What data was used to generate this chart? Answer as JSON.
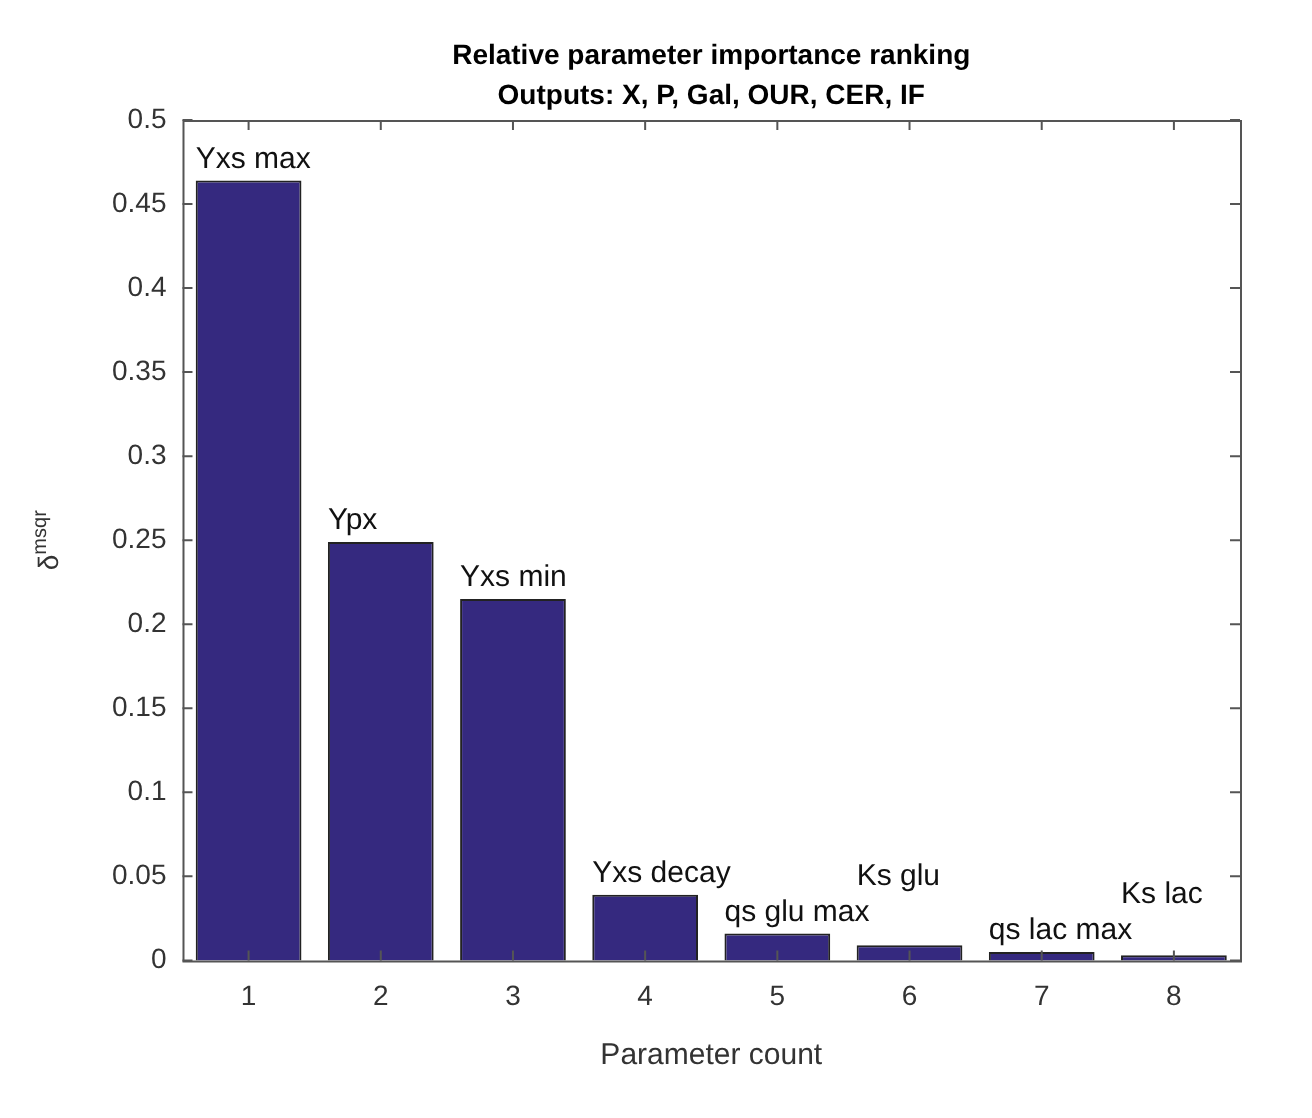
{
  "chart_data": {
    "type": "bar",
    "title": "Relative parameter importance ranking",
    "subtitle": "Outputs: X, P, Gal, OUR, CER, IF",
    "xlabel": "Parameter count",
    "ylabel": "δ$^{msqr}$",
    "categories": [
      "1",
      "2",
      "3",
      "4",
      "5",
      "6",
      "7",
      "8"
    ],
    "values": [
      0.464,
      0.249,
      0.215,
      0.039,
      0.016,
      0.009,
      0.005,
      0.003
    ],
    "color": "#35297f",
    "ylim": [
      0,
      0.5
    ],
    "yticks": [
      0,
      0.05,
      0.1,
      0.15,
      0.2,
      0.25,
      0.3,
      0.35,
      0.4,
      0.45,
      0.5
    ],
    "grid": false,
    "legend": false,
    "annotations": [
      {
        "text": "Yxs max",
        "x": "1",
        "y": 0.464
      },
      {
        "text": "Ypx",
        "x": "2",
        "y": 0.249
      },
      {
        "text": "Yxs min",
        "x": "3",
        "y": 0.215
      },
      {
        "text": "Yxs decay",
        "x": "4",
        "y": 0.039
      },
      {
        "text": "qs glu max",
        "x": "5",
        "y": 0.016
      },
      {
        "text": "Ks glu",
        "x": "6",
        "y": 0.009
      },
      {
        "text": "qs lac max",
        "x": "7",
        "y": 0.005
      },
      {
        "text": "Ks lac",
        "x": "8",
        "y": 0.003
      }
    ]
  }
}
